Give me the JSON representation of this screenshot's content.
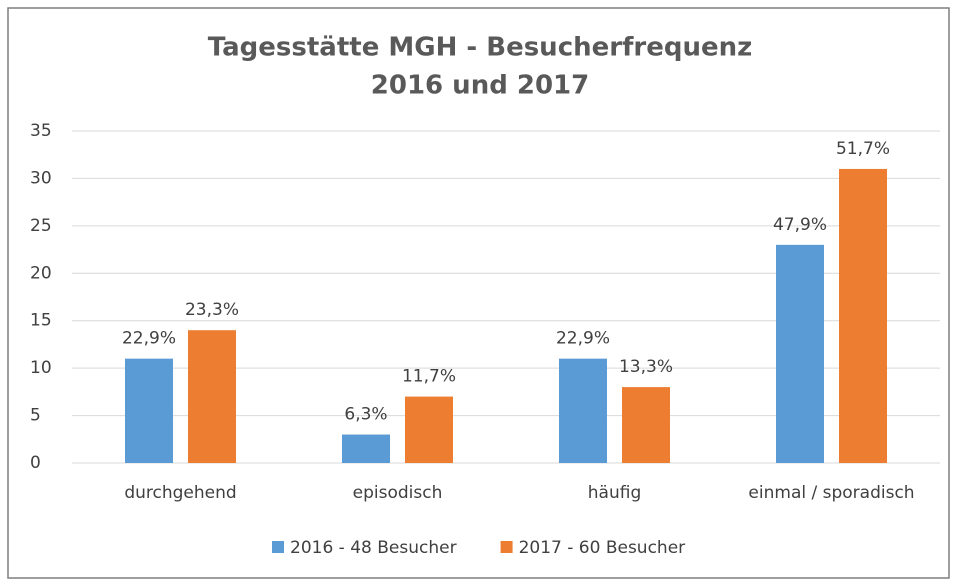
{
  "chart_data": {
    "type": "bar",
    "title": [
      "Tagesstätte MGH - Besucherfrequenz",
      "2016 und 2017"
    ],
    "categories": [
      "durchgehend",
      "episodisch",
      "häufig",
      "einmal / sporadisch"
    ],
    "series": [
      {
        "name": "2016 - 48 Besucher",
        "color": "#5b9bd5",
        "values": [
          11,
          3,
          11,
          23
        ],
        "value_labels": [
          "22,9%",
          "6,3%",
          "22,9%",
          "47,9%"
        ]
      },
      {
        "name": "2017 - 60 Besucher",
        "color": "#ed7d31",
        "values": [
          14,
          7,
          8,
          31
        ],
        "value_labels": [
          "23,3%",
          "11,7%",
          "13,3%",
          "51,7%"
        ]
      }
    ],
    "ylim": [
      0,
      35
    ],
    "yticks": [
      0,
      5,
      10,
      15,
      20,
      25,
      30,
      35
    ],
    "grid": true,
    "legend": "bottom"
  }
}
